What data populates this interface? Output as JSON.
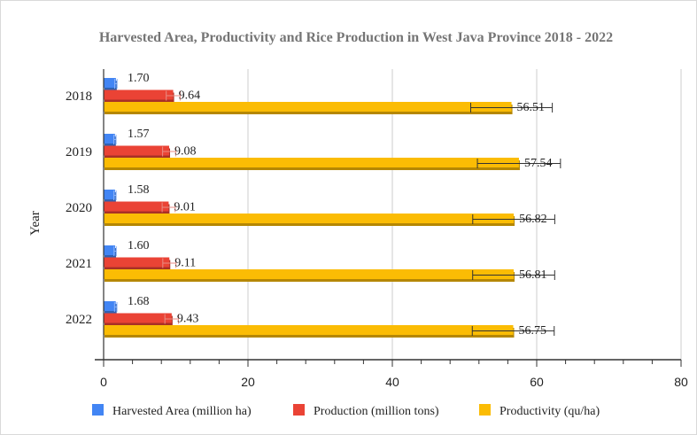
{
  "chart_data": {
    "type": "bar",
    "orientation": "horizontal",
    "title": "Harvested Area, Productivity and Rice Production in West Java Province 2018 - 2022",
    "ylabel": "Year",
    "xlabel": "",
    "categories": [
      "2018",
      "2019",
      "2020",
      "2021",
      "2022"
    ],
    "xlim": [
      0,
      80
    ],
    "xticks": [
      0,
      20,
      40,
      60,
      80
    ],
    "grid": true,
    "legend_position": "bottom",
    "series": [
      {
        "name": "Harvested Area (million ha)",
        "color": "#4285f4",
        "values": [
          1.7,
          1.57,
          1.58,
          1.6,
          1.68
        ],
        "labels": [
          "1.70",
          "1.57",
          "1.58",
          "1.60",
          "1.68"
        ]
      },
      {
        "name": "Production (million tons)",
        "color": "#ea4335",
        "values": [
          9.64,
          9.08,
          9.01,
          9.11,
          9.43
        ],
        "labels": [
          "9.64",
          "9.08",
          "9.01",
          "9.11",
          "9.43"
        ]
      },
      {
        "name": "Productivity (qu/ha)",
        "color": "#fbbc04",
        "values": [
          56.51,
          57.54,
          56.82,
          56.81,
          56.75
        ],
        "labels": [
          "56.51",
          "57.54",
          "56.82",
          "56.81",
          "56.75"
        ]
      }
    ]
  }
}
